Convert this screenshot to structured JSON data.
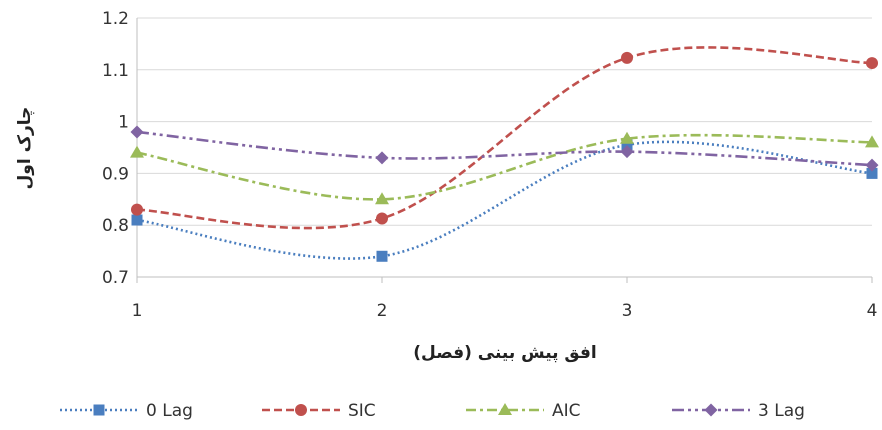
{
  "chart_data": {
    "type": "line",
    "x": [
      1,
      2,
      3,
      4
    ],
    "xlabel": "افق پیش بینی (فصل)",
    "ylabel": "چارک اول",
    "xlim": [
      1,
      4
    ],
    "ylim": [
      0.7,
      1.2
    ],
    "y_ticks": [
      "0.7",
      "0.8",
      "0.9",
      "1",
      "1.1",
      "1.2"
    ],
    "x_ticks": [
      "1",
      "2",
      "3",
      "4"
    ],
    "grid": true,
    "legend_position": "bottom",
    "smooth": true,
    "series": [
      {
        "name": "0 Lag",
        "values": [
          0.81,
          0.74,
          0.955,
          0.9
        ],
        "color": "#4a7ebf",
        "marker": "square",
        "dash": "dotted"
      },
      {
        "name": "SIC",
        "values": [
          0.83,
          0.813,
          1.123,
          1.113
        ],
        "color": "#c0504d",
        "marker": "circle",
        "dash": "dashed"
      },
      {
        "name": "AIC",
        "values": [
          0.94,
          0.85,
          0.967,
          0.96
        ],
        "color": "#9bbb59",
        "marker": "triangle",
        "dash": "dashdot"
      },
      {
        "name": "3 Lag",
        "values": [
          0.98,
          0.93,
          0.942,
          0.916
        ],
        "color": "#8064a2",
        "marker": "diamond",
        "dash": "dashdotdot"
      }
    ]
  }
}
